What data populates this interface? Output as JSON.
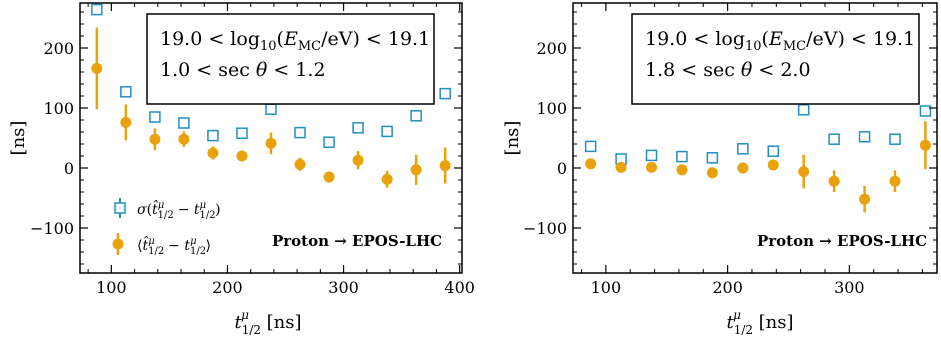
{
  "colors": {
    "sigma": "#1f8fc4",
    "mean": "#e8a20c",
    "axes": "#000000",
    "background": "#ffffff"
  },
  "chart_data": [
    {
      "type": "scatter",
      "xlabel": "t_1/2^μ [ns]",
      "ylabel": "[ns]",
      "xlim": [
        73,
        402
      ],
      "ylim": [
        -175,
        275
      ],
      "xticks": [
        100,
        200,
        300,
        400
      ],
      "yticks": [
        -100,
        0,
        100,
        200
      ],
      "grid": false,
      "annotation": {
        "line1": "19.0 < log10(E_MC/eV) < 19.1",
        "line2": "1.0 < sec θ < 1.2"
      },
      "label_bold": "Proton → EPOS-LHC",
      "legend": {
        "position": "lower-left",
        "entries": [
          "σ(t̂_1/2^μ − t_1/2^μ)",
          "⟨t̂_1/2^μ − t_1/2^μ⟩"
        ]
      },
      "series": [
        {
          "marker": "open-square",
          "x": [
            87.5,
            112.5,
            137.5,
            162.5,
            187.5,
            212.5,
            237.5,
            262.5,
            287.5,
            312.5,
            337.5,
            362.5,
            387.5
          ],
          "y": [
            264,
            127,
            85,
            75,
            54,
            58,
            98,
            59,
            43,
            67,
            61,
            87,
            124
          ],
          "yerr": [
            6,
            5,
            4,
            4,
            3,
            3,
            4,
            3,
            3,
            3,
            3,
            3,
            4
          ]
        },
        {
          "marker": "filled-circle",
          "x": [
            87.5,
            112.5,
            137.5,
            162.5,
            187.5,
            212.5,
            237.5,
            262.5,
            287.5,
            312.5,
            337.5,
            362.5,
            387.5
          ],
          "y": [
            166,
            76,
            48,
            48,
            25,
            20,
            41,
            6,
            -15,
            13,
            -19,
            -3,
            4
          ],
          "yerr": [
            68,
            30,
            18,
            13,
            11,
            8,
            18,
            11,
            6,
            15,
            14,
            25,
            30
          ]
        }
      ]
    },
    {
      "type": "scatter",
      "xlabel": "t_1/2^μ [ns]",
      "ylabel": "[ns]",
      "xlim": [
        73,
        372
      ],
      "ylim": [
        -175,
        275
      ],
      "xticks": [
        100,
        200,
        300
      ],
      "yticks": [
        -100,
        0,
        100,
        200
      ],
      "grid": false,
      "annotation": {
        "line1": "19.0 < log10(E_MC/eV) < 19.1",
        "line2": "1.8 < sec θ < 2.0"
      },
      "label_bold": "Proton → EPOS-LHC",
      "series": [
        {
          "marker": "open-square",
          "x": [
            87.5,
            112.5,
            137.5,
            162.5,
            187.5,
            212.5,
            237.5,
            262.5,
            287.5,
            312.5,
            337.5,
            362.5
          ],
          "y": [
            36,
            15,
            21,
            19,
            17,
            32,
            28,
            97,
            48,
            52,
            48,
            95
          ],
          "yerr": [
            3,
            2,
            2,
            2,
            2,
            2,
            2,
            3,
            3,
            3,
            3,
            4
          ]
        },
        {
          "marker": "filled-circle",
          "x": [
            87.5,
            112.5,
            137.5,
            162.5,
            187.5,
            212.5,
            237.5,
            262.5,
            287.5,
            312.5,
            337.5,
            362.5
          ],
          "y": [
            7,
            1,
            1,
            -3,
            -8,
            0,
            5,
            -6,
            -22,
            -52,
            -22,
            38
          ],
          "yerr": [
            4,
            3,
            3,
            3,
            4,
            4,
            4,
            28,
            18,
            22,
            18,
            40
          ]
        }
      ]
    }
  ]
}
